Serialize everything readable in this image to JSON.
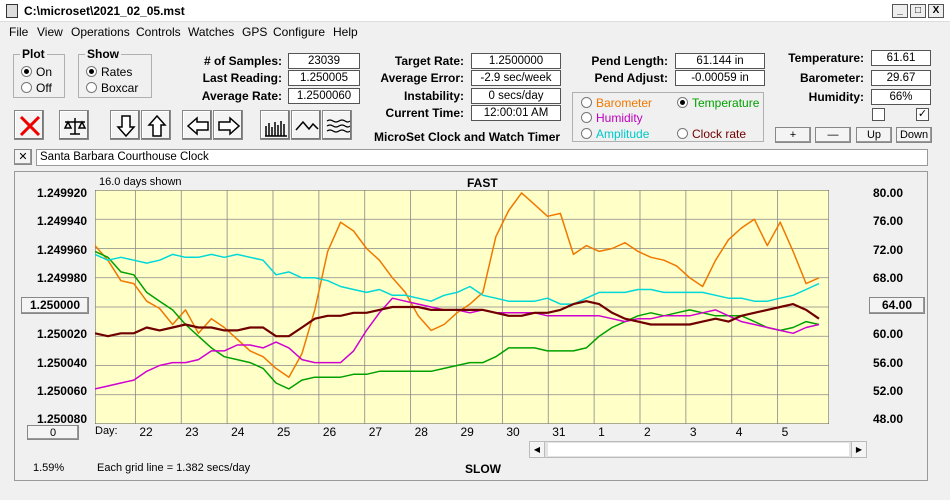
{
  "window": {
    "title": "C:\\microset\\2021_02_05.mst"
  },
  "menu": [
    "File",
    "View",
    "Operations",
    "Controls",
    "Watches",
    "GPS",
    "Configure",
    "Help"
  ],
  "plot_group": {
    "title": "Plot",
    "on": "On",
    "off": "Off",
    "selected": "On"
  },
  "show_group": {
    "title": "Show",
    "rates": "Rates",
    "boxcar": "Boxcar",
    "selected": "Rates"
  },
  "stats": {
    "samples_label": "# of Samples:",
    "samples": "23039",
    "last_label": "Last Reading:",
    "last": "1.250005",
    "avg_rate_label": "Average Rate:",
    "avg_rate": "1.2500060",
    "target_label": "Target Rate:",
    "target": "1.2500000",
    "avg_err_label": "Average Error:",
    "avg_err": "-2.9 sec/week",
    "instab_label": "Instability:",
    "instab": "0 secs/day",
    "time_label": "Current Time:",
    "time": "12:00:01 AM",
    "pend_len_label": "Pend Length:",
    "pend_len": "61.144 in",
    "pend_adj_label": "Pend Adjust:",
    "pend_adj": "-0.00059 in",
    "temp_label": "Temperature:",
    "temp": "61.61",
    "baro_label": "Barometer:",
    "baro": "29.67",
    "hum_label": "Humidity:",
    "hum": "66%"
  },
  "product_name": "MicroSet Clock and Watch Timer",
  "aux_group": {
    "barometer": "Barometer",
    "temperature": "Temperature",
    "humidity": "Humidity",
    "amplitude": "Amplitude",
    "clock_rate": "Clock rate",
    "selected": "Temperature",
    "colors": {
      "barometer": "#f07800",
      "temperature": "#00a000",
      "humidity": "#c000c0",
      "amplitude": "#00c8c8",
      "clock_rate": "#700000"
    }
  },
  "aux_buttons": {
    "plus": "+",
    "minus": "—",
    "up": "Up",
    "down": "Down"
  },
  "checkboxes": {
    "left": false,
    "right": true
  },
  "clock_name": "Santa Barbara Courthouse Clock",
  "close_glyph": "✕",
  "chart": {
    "days_shown": "16.0 days shown",
    "top_label": "FAST",
    "bottom_label": "SLOW",
    "grid_note": "Each grid line = 1.382 secs/day",
    "percent": "1.59%",
    "day_label": "Day:",
    "left_center_button": "1.250000",
    "right_center_button": "64.00",
    "left_bottom_button": "0"
  },
  "chart_data": {
    "type": "line",
    "x_labels": [
      "22",
      "23",
      "24",
      "25",
      "26",
      "27",
      "28",
      "29",
      "30",
      "31",
      "1",
      "2",
      "3",
      "4",
      "5"
    ],
    "y_left_ticks": [
      "1.249920",
      "1.249940",
      "1.249960",
      "1.249980",
      "1.250000",
      "1.250020",
      "1.250040",
      "1.250060",
      "1.250080"
    ],
    "y_right_ticks": [
      "80.00",
      "76.00",
      "72.00",
      "68.00",
      "64.00",
      "60.00",
      "56.00",
      "52.00",
      "48.00"
    ],
    "y_left_range": [
      1.24992,
      1.25008
    ],
    "y_right_range": [
      48,
      80
    ],
    "grid": true,
    "series": [
      {
        "color": "#f07800",
        "values": [
          1.249958,
          1.249968,
          1.249982,
          1.249984,
          1.249996,
          1.250001,
          1.250012,
          1.250002,
          1.250018,
          1.250008,
          1.250014,
          1.250022,
          1.25003,
          1.250034,
          1.250042,
          1.250048,
          1.250032,
          1.250002,
          1.249962,
          1.249942,
          1.249948,
          1.24996,
          1.249968,
          1.24998,
          1.24999,
          1.250006,
          1.250016,
          1.250012,
          1.250004,
          1.249998,
          1.24999,
          1.249952,
          1.249934,
          1.249922,
          1.24993,
          1.249938,
          1.249936,
          1.249964,
          1.249958,
          1.249962,
          1.24996,
          1.249956,
          1.249962,
          1.249966,
          1.249968,
          1.249972,
          1.24998,
          1.249986,
          1.249968,
          1.249954,
          1.249946,
          1.24994,
          1.249958,
          1.249942,
          1.249962,
          1.249984,
          1.24998
        ]
      },
      {
        "color": "#00a000",
        "values": [
          1.249962,
          1.249966,
          1.249976,
          1.249978,
          1.24999,
          1.249996,
          1.250002,
          1.250012,
          1.25002,
          1.250028,
          1.250034,
          1.250036,
          1.250038,
          1.250042,
          1.250052,
          1.250056,
          1.25005,
          1.250048,
          1.250048,
          1.250048,
          1.250046,
          1.250046,
          1.250044,
          1.250044,
          1.250044,
          1.250044,
          1.250044,
          1.250042,
          1.25004,
          1.250038,
          1.250038,
          1.250034,
          1.250028,
          1.250028,
          1.250028,
          1.25003,
          1.25003,
          1.25003,
          1.250028,
          1.25002,
          1.250014,
          1.25001,
          1.250006,
          1.250004,
          1.250006,
          1.250004,
          1.250002,
          1.250004,
          1.250006,
          1.250006,
          1.250006,
          1.25001,
          1.250014,
          1.250016,
          1.250014,
          1.25001,
          1.250012
        ]
      },
      {
        "color": "#00d8d8",
        "values": [
          1.249964,
          1.249968,
          1.249966,
          1.249968,
          1.24997,
          1.249968,
          1.249964,
          1.249966,
          1.249966,
          1.249964,
          1.249966,
          1.249964,
          1.249966,
          1.249968,
          1.249978,
          1.249976,
          1.24998,
          1.24998,
          1.249982,
          1.249986,
          1.249988,
          1.24999,
          1.249988,
          1.249992,
          1.249992,
          1.249994,
          1.249996,
          1.249992,
          1.24999,
          1.249986,
          1.249992,
          1.249994,
          1.249996,
          1.249996,
          1.249996,
          1.249994,
          1.249998,
          1.249998,
          1.249994,
          1.24999,
          1.24999,
          1.24999,
          1.249988,
          1.249988,
          1.24999,
          1.24999,
          1.24999,
          1.24999,
          1.249992,
          1.249994,
          1.249994,
          1.249996,
          1.249996,
          1.249994,
          1.249992,
          1.249988,
          1.249984
        ]
      },
      {
        "color": "#d000d0",
        "values": [
          1.250056,
          1.250054,
          1.250052,
          1.25005,
          1.250044,
          1.25004,
          1.250038,
          1.250038,
          1.250036,
          1.25003,
          1.25003,
          1.250026,
          1.250026,
          1.250028,
          1.250024,
          1.250028,
          1.250036,
          1.250038,
          1.250038,
          1.250038,
          1.25003,
          1.250016,
          1.250004,
          1.249994,
          1.249996,
          1.249998,
          1.25,
          1.250002,
          1.250002,
          1.250004,
          1.250002,
          1.250004,
          1.250004,
          1.250004,
          1.250004,
          1.250006,
          1.250006,
          1.250006,
          1.250006,
          1.250006,
          1.250008,
          1.25001,
          1.250008,
          1.250008,
          1.250006,
          1.250006,
          1.250006,
          1.250004,
          1.250002,
          1.250006,
          1.25001,
          1.250012,
          1.250014,
          1.250016,
          1.250018,
          1.250014,
          1.250012
        ]
      },
      {
        "color": "#700000",
        "values": [
          1.250018,
          1.25002,
          1.250018,
          1.250018,
          1.250014,
          1.250016,
          1.250014,
          1.250012,
          1.250014,
          1.250014,
          1.250016,
          1.250016,
          1.250014,
          1.250014,
          1.25002,
          1.25002,
          1.250014,
          1.250008,
          1.250006,
          1.250006,
          1.250004,
          1.250004,
          1.250002,
          1.25,
          1.25,
          1.25,
          1.250002,
          1.250002,
          1.250002,
          1.250002,
          1.250002,
          1.250004,
          1.250006,
          1.250006,
          1.250004,
          1.250004,
          1.250002,
          1.249998,
          1.249996,
          1.249998,
          1.250004,
          1.250008,
          1.25001,
          1.250012,
          1.250012,
          1.250012,
          1.250012,
          1.25001,
          1.250008,
          1.25001,
          1.250006,
          1.250004,
          1.250002,
          1.25,
          1.249998,
          1.250002,
          1.250008
        ]
      }
    ]
  }
}
